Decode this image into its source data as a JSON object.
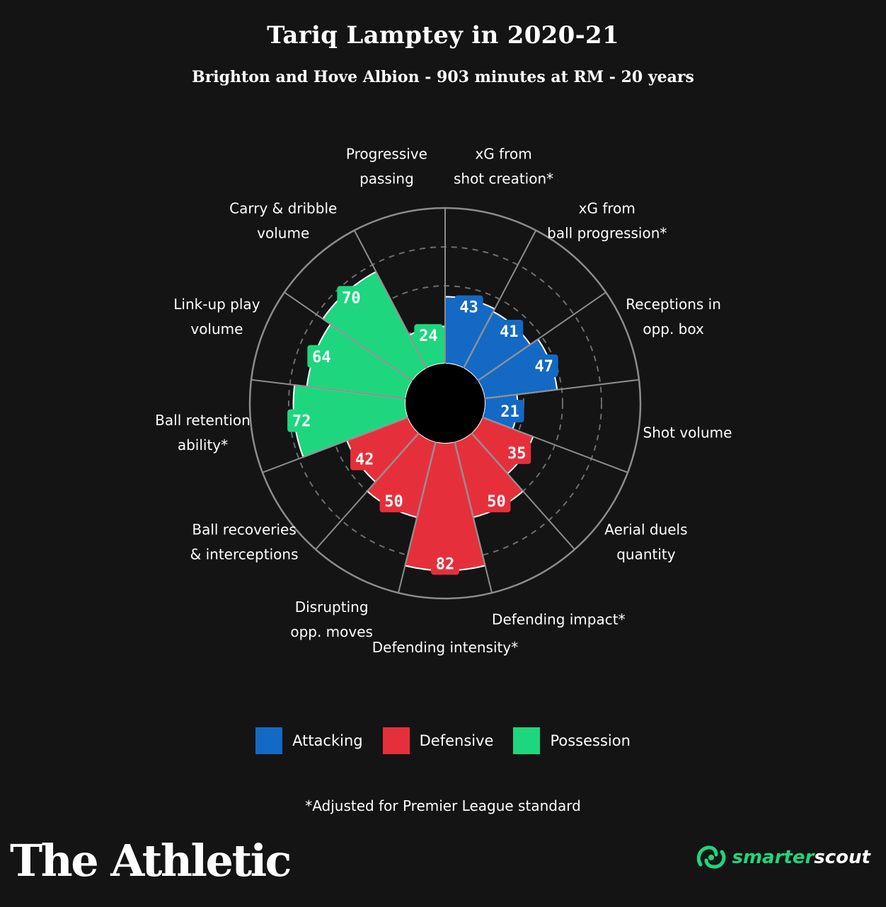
{
  "title": "Tariq Lamptey in 2020-21",
  "subtitle": "Brighton and Hove Albion - 903 minutes at RM - 20 years",
  "colors": {
    "attacking": "#1469c4",
    "defensive": "#e5303c",
    "possession": "#1ed67e",
    "background": "#141414",
    "grid": "#8c8c8c"
  },
  "chart_data": {
    "type": "polar-bar",
    "scale_max": 100,
    "grid_rings": [
      25,
      50,
      75
    ],
    "start_angle_deg": 0,
    "direction": "clockwise",
    "metrics": [
      {
        "label": [
          "xG from",
          "shot creation*"
        ],
        "value": 43,
        "category": "attacking"
      },
      {
        "label": [
          "xG from",
          "ball progression*"
        ],
        "value": 41,
        "category": "attacking"
      },
      {
        "label": [
          "Receptions in",
          "opp. box"
        ],
        "value": 47,
        "category": "attacking"
      },
      {
        "label": [
          "Shot volume"
        ],
        "value": 21,
        "category": "attacking"
      },
      {
        "label": [
          "Aerial duels",
          "quantity"
        ],
        "value": 35,
        "category": "defensive"
      },
      {
        "label": [
          "Defending impact*"
        ],
        "value": 50,
        "category": "defensive"
      },
      {
        "label": [
          "Defending intensity*"
        ],
        "value": 82,
        "category": "defensive"
      },
      {
        "label": [
          "Disrupting",
          "opp. moves"
        ],
        "value": 50,
        "category": "defensive"
      },
      {
        "label": [
          "Ball recoveries",
          "& interceptions"
        ],
        "value": 42,
        "category": "defensive"
      },
      {
        "label": [
          "Ball retention",
          "ability*"
        ],
        "value": 72,
        "category": "possession"
      },
      {
        "label": [
          "Link-up play",
          "volume"
        ],
        "value": 64,
        "category": "possession"
      },
      {
        "label": [
          "Carry & dribble",
          "volume"
        ],
        "value": 70,
        "category": "possession"
      },
      {
        "label": [
          "Progressive",
          "passing"
        ],
        "value": 24,
        "category": "possession"
      }
    ]
  },
  "legend": [
    {
      "label": "Attacking",
      "category": "attacking"
    },
    {
      "label": "Defensive",
      "category": "defensive"
    },
    {
      "label": "Possession",
      "category": "possession"
    }
  ],
  "footnote": "*Adjusted for Premier League standard",
  "brand_left": "The Athletic",
  "brand_right": {
    "part1": "smarter",
    "part2": "scout"
  }
}
